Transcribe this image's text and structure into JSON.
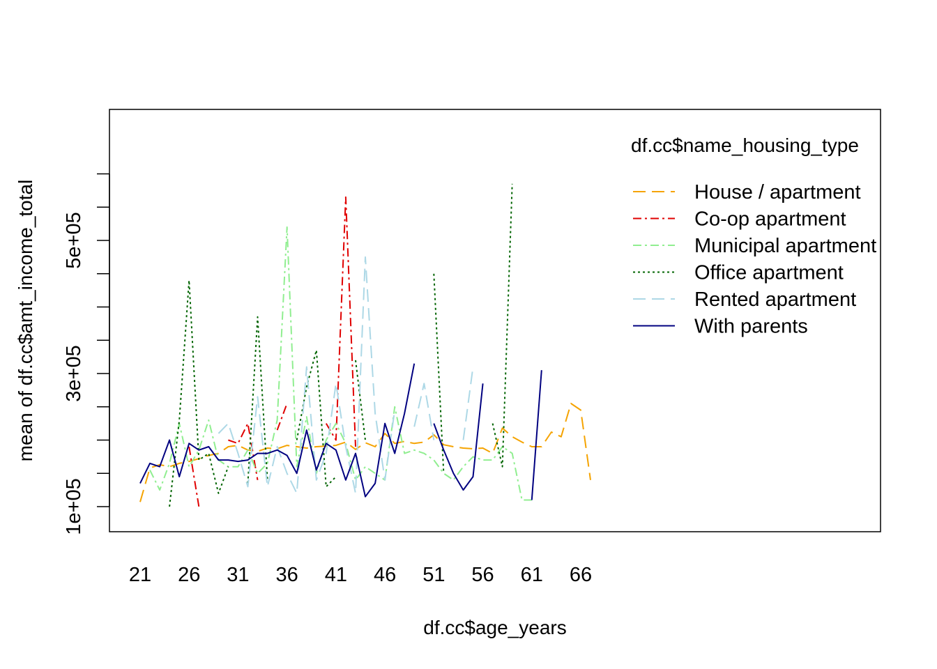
{
  "chart_data": {
    "type": "line",
    "xlabel": "df.cc$age_years",
    "ylabel": "mean of  df.cc$amt_income_total",
    "xlim": [
      21,
      66
    ],
    "ylim": [
      95000,
      650000
    ],
    "x_ticks": [
      21,
      26,
      31,
      36,
      41,
      46,
      51,
      56,
      61,
      66
    ],
    "y_ticks": [
      100000,
      150000,
      200000,
      250000,
      300000,
      350000,
      400000,
      450000,
      500000,
      550000,
      600000
    ],
    "y_tick_labels": [
      {
        "value": 100000,
        "label": "1e+05"
      },
      {
        "value": 300000,
        "label": "3e+05"
      },
      {
        "value": 500000,
        "label": "5e+05"
      }
    ],
    "grid": false,
    "legend_title": "df.cc$name_housing_type",
    "legend_position": "top-right",
    "series": [
      {
        "name": "House / apartment",
        "color": "#f5a300",
        "dash": "18,9",
        "x": [
          21,
          22,
          23,
          24,
          25,
          26,
          27,
          28,
          29,
          30,
          31,
          32,
          33,
          34,
          35,
          36,
          37,
          38,
          39,
          40,
          41,
          42,
          43,
          44,
          45,
          46,
          47,
          48,
          49,
          50,
          51,
          52,
          53,
          54,
          55,
          56,
          57,
          58,
          59,
          60,
          61,
          62,
          63,
          64,
          65,
          66,
          67
        ],
        "y": [
          107000,
          158000,
          163000,
          160000,
          165000,
          168000,
          172000,
          177000,
          180000,
          190000,
          192000,
          185000,
          183000,
          188000,
          187000,
          192000,
          190000,
          188000,
          190000,
          191000,
          192000,
          197000,
          186000,
          196000,
          190000,
          210000,
          195000,
          198000,
          195000,
          197000,
          208000,
          193000,
          190000,
          188000,
          187000,
          188000,
          180000,
          218000,
          205000,
          197000,
          190000,
          190000,
          212000,
          205000,
          255000,
          245000,
          140000
        ]
      },
      {
        "name": "Co-op apartment",
        "color": "#e00000",
        "dash": "12,5,3,5",
        "x": [
          26,
          27,
          null,
          30,
          31,
          32,
          33,
          null,
          35,
          36,
          null,
          40,
          41,
          42,
          43
        ],
        "y": [
          190000,
          100000,
          null,
          200000,
          195000,
          225000,
          140000,
          null,
          215000,
          255000,
          null,
          225000,
          200000,
          565000,
          190000
        ]
      },
      {
        "name": "Municipal apartment",
        "color": "#90ee90",
        "dash": "12,5,3,5",
        "x": [
          22,
          23,
          24,
          25,
          26,
          27,
          28,
          29,
          30,
          31,
          32,
          33,
          34,
          35,
          36,
          37,
          38,
          39,
          40,
          41,
          42,
          43,
          44,
          45,
          46,
          47,
          48,
          49,
          50,
          51,
          52,
          53,
          54,
          55,
          56,
          57,
          58,
          59,
          60,
          61
        ],
        "y": [
          155000,
          125000,
          165000,
          225000,
          160000,
          185000,
          230000,
          170000,
          160000,
          160000,
          185000,
          150000,
          165000,
          230000,
          520000,
          160000,
          235000,
          150000,
          200000,
          225000,
          195000,
          140000,
          160000,
          150000,
          140000,
          250000,
          180000,
          185000,
          180000,
          170000,
          150000,
          140000,
          160000,
          175000,
          170000,
          170000,
          190000,
          180000,
          110000,
          110000
        ]
      },
      {
        "name": "Office apartment",
        "color": "#006400",
        "dash": "3,4",
        "x": [
          24,
          25,
          26,
          27,
          28,
          29,
          30,
          null,
          32,
          33,
          34,
          null,
          37,
          38,
          39,
          40,
          41,
          null,
          43,
          44,
          null,
          51,
          52,
          null,
          57,
          58,
          59
        ],
        "y": [
          100000,
          230000,
          440000,
          170000,
          180000,
          120000,
          160000,
          null,
          135000,
          385000,
          140000,
          null,
          200000,
          280000,
          335000,
          130000,
          145000,
          null,
          320000,
          200000,
          null,
          450000,
          150000,
          null,
          225000,
          160000,
          585000
        ]
      },
      {
        "name": "Rented apartment",
        "color": "#add8e6",
        "dash": "18,9",
        "x": [
          29,
          30,
          31,
          32,
          33,
          34,
          35,
          36,
          37,
          38,
          39,
          40,
          41,
          42,
          43,
          44,
          45,
          46,
          47,
          null,
          49,
          50,
          51,
          null,
          54,
          55
        ],
        "y": [
          210000,
          225000,
          180000,
          130000,
          265000,
          130000,
          190000,
          150000,
          120000,
          310000,
          140000,
          180000,
          285000,
          190000,
          120000,
          475000,
          240000,
          140000,
          245000,
          null,
          220000,
          285000,
          200000,
          null,
          200000,
          310000
        ]
      },
      {
        "name": "With parents",
        "color": "#000080",
        "dash": "none",
        "x": [
          21,
          22,
          23,
          24,
          25,
          26,
          27,
          28,
          29,
          30,
          31,
          32,
          33,
          34,
          35,
          36,
          37,
          38,
          39,
          40,
          41,
          42,
          43,
          44,
          45,
          46,
          47,
          48,
          49,
          null,
          51,
          52,
          53,
          54,
          55,
          56,
          null,
          61,
          62
        ],
        "y": [
          135000,
          165000,
          160000,
          200000,
          145000,
          195000,
          185000,
          190000,
          170000,
          170000,
          168000,
          170000,
          180000,
          180000,
          185000,
          177000,
          150000,
          215000,
          155000,
          195000,
          185000,
          140000,
          180000,
          115000,
          135000,
          225000,
          180000,
          240000,
          315000,
          null,
          225000,
          185000,
          150000,
          125000,
          145000,
          285000,
          null,
          110000,
          305000
        ]
      }
    ]
  }
}
